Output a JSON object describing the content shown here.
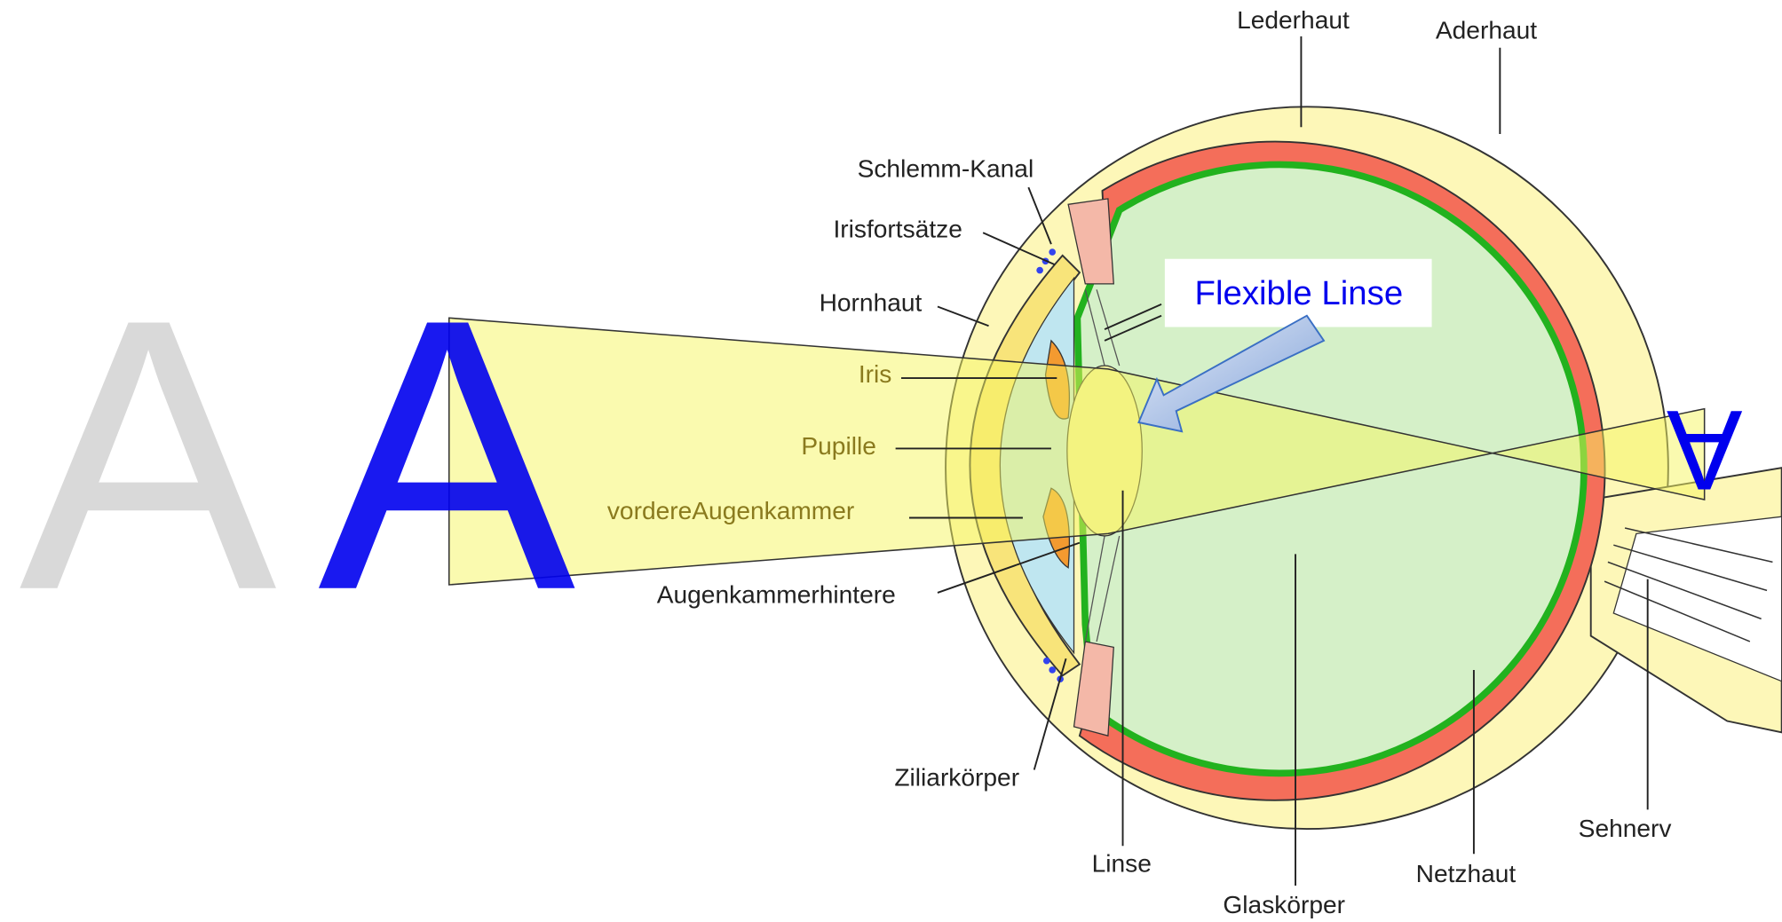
{
  "letters": {
    "object": "A",
    "object_blue": "A",
    "image": "A"
  },
  "callout": "Flexible Linse",
  "labels": {
    "lederhaut": "Lederhaut",
    "aderhaut": "Aderhaut",
    "schlemm": "Schlemm-Kanal",
    "irisfortsaetze": "Irisfortsätze",
    "hornhaut": "Hornhaut",
    "iris": "Iris",
    "pupille": "Pupille",
    "vordere": "vordereAugenkammer",
    "hintere": "Augenkammerhintere",
    "ziliar": "Ziliarkörper",
    "linse": "Linse",
    "glaskoerper": "Glaskörper",
    "netzhaut": "Netzhaut",
    "sehnerv": "Sehnerv"
  }
}
